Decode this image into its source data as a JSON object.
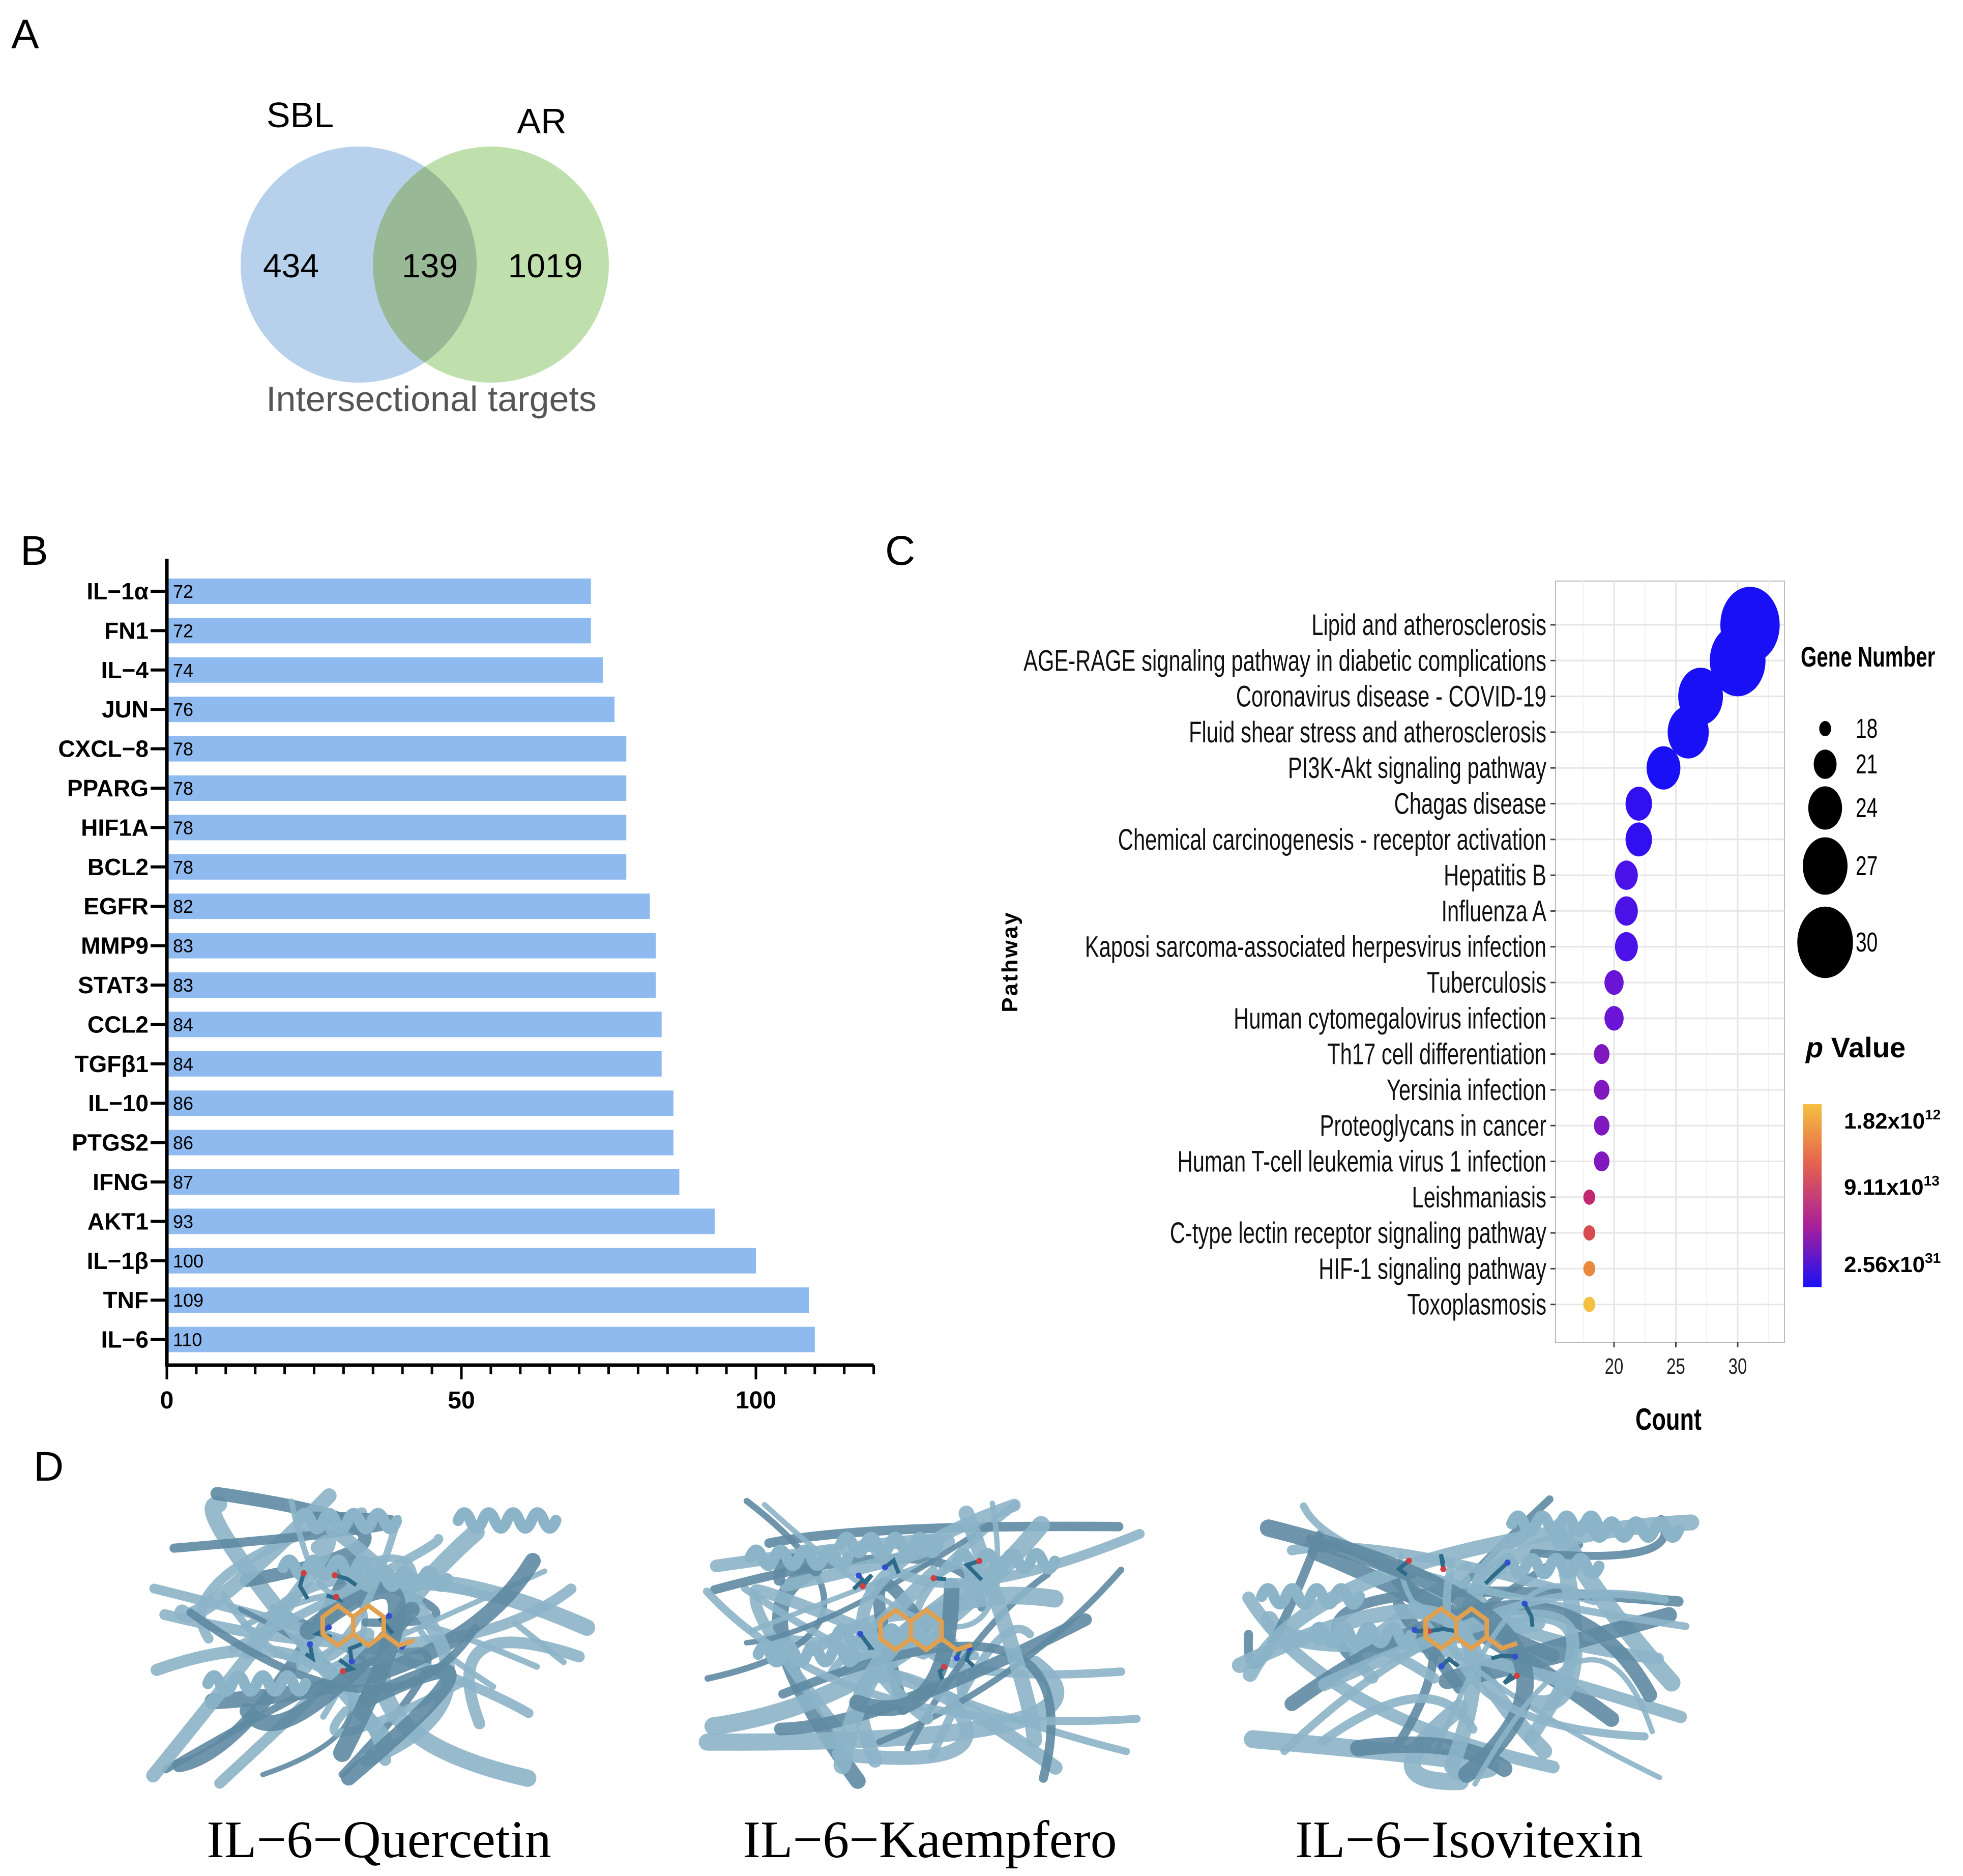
{
  "panels": {
    "a": "A",
    "b": "B",
    "c": "C",
    "d": "D"
  },
  "venn": {
    "left_label": "SBL",
    "right_label": "AR",
    "left_only": "434",
    "overlap": "139",
    "right_only": "1019",
    "caption": "Intersectional targets",
    "colors": {
      "left": "#aac8e8",
      "right": "#b8dda4",
      "overlap": "#98b896"
    }
  },
  "chart_data": [
    {
      "type": "bar",
      "orientation": "horizontal",
      "title": "",
      "xlabel": "",
      "ylabel": "",
      "xlim": [
        0,
        120
      ],
      "x_ticks": [
        "0",
        "50",
        "100"
      ],
      "bar_color": "#8fbaf0",
      "categories": [
        "IL−1α",
        "FN1",
        "IL−4",
        "JUN",
        "CXCL−8",
        "PPARG",
        "HIF1A",
        "BCL2",
        "EGFR",
        "MMP9",
        "STAT3",
        "CCL2",
        "TGFβ1",
        "IL−10",
        "PTGS2",
        "IFNG",
        "AKT1",
        "IL−1β",
        "TNF",
        "IL−6"
      ],
      "values": [
        72,
        72,
        74,
        76,
        78,
        78,
        78,
        78,
        82,
        83,
        83,
        84,
        84,
        86,
        86,
        87,
        93,
        100,
        109,
        110
      ],
      "data_labels": [
        "72",
        "72",
        "74",
        "76",
        "78",
        "78",
        "78",
        "78",
        "82",
        "83",
        "83",
        "84",
        "84",
        "86",
        "86",
        "87",
        "93",
        "100",
        "109",
        "110"
      ]
    },
    {
      "type": "scatter",
      "subtype": "bubble",
      "title": "",
      "xlabel": "Count",
      "ylabel": "Pathway",
      "xlim": [
        15.5,
        34
      ],
      "x_ticks": [
        "20",
        "25",
        "30"
      ],
      "grid": true,
      "pathways": [
        "Lipid and atherosclerosis",
        "AGE-RAGE signaling pathway in diabetic complications",
        "Coronavirus disease - COVID-19",
        "Fluid shear stress and atherosclerosis",
        "PI3K-Akt signaling pathway",
        "Chagas disease",
        "Chemical carcinogenesis - receptor activation",
        "Hepatitis B",
        "Influenza A",
        "Kaposi sarcoma-associated herpesvirus infection",
        "Tuberculosis",
        "Human cytomegalovirus infection",
        "Th17 cell differentiation",
        "Yersinia infection",
        "Proteoglycans in cancer",
        "Human T-cell leukemia virus 1 infection",
        "Leishmaniasis",
        "C-type lectin receptor signaling pathway",
        "HIF-1 signaling pathway",
        "Toxoplasmosis"
      ],
      "counts": [
        31,
        30,
        27,
        26,
        24,
        22,
        22,
        21,
        21,
        21,
        20,
        20,
        19,
        19,
        19,
        19,
        18,
        18,
        18,
        18
      ],
      "colors": [
        "#1a10f5",
        "#1a10f5",
        "#1a10f5",
        "#1a10f5",
        "#1a10f5",
        "#3010f0",
        "#3010f0",
        "#4a12e6",
        "#4a12e6",
        "#4a12e6",
        "#6a14d6",
        "#6a14d6",
        "#8018c0",
        "#8018c0",
        "#8018c0",
        "#8018c0",
        "#c02870",
        "#d64a50",
        "#e88a3c",
        "#f4c040"
      ],
      "size_legend": {
        "title": "Gene Number",
        "values": [
          18,
          21,
          24,
          27,
          30
        ],
        "labels": [
          "18",
          "21",
          "24",
          "27",
          "30"
        ]
      },
      "color_legend": {
        "title_italic": "p",
        "title_rest": " Value",
        "labels": [
          {
            "base": "1.82x10",
            "exp": "12"
          },
          {
            "base": "9.11x10",
            "exp": "13"
          },
          {
            "base": "2.56x10",
            "exp": "31"
          }
        ],
        "gradient": [
          "#f4c040",
          "#e46050",
          "#a81f9a",
          "#1a10f5"
        ]
      }
    }
  ],
  "docking": {
    "labels": [
      "IL−6−Quercetin",
      "IL−6−Kaempfero",
      "IL−6−Isovitexin"
    ],
    "colors": {
      "ribbon": "#8cb4c8",
      "ribbon_dark": "#5e8aa2",
      "ligand": "#e0a050",
      "residue": "#2e6a8a"
    }
  }
}
